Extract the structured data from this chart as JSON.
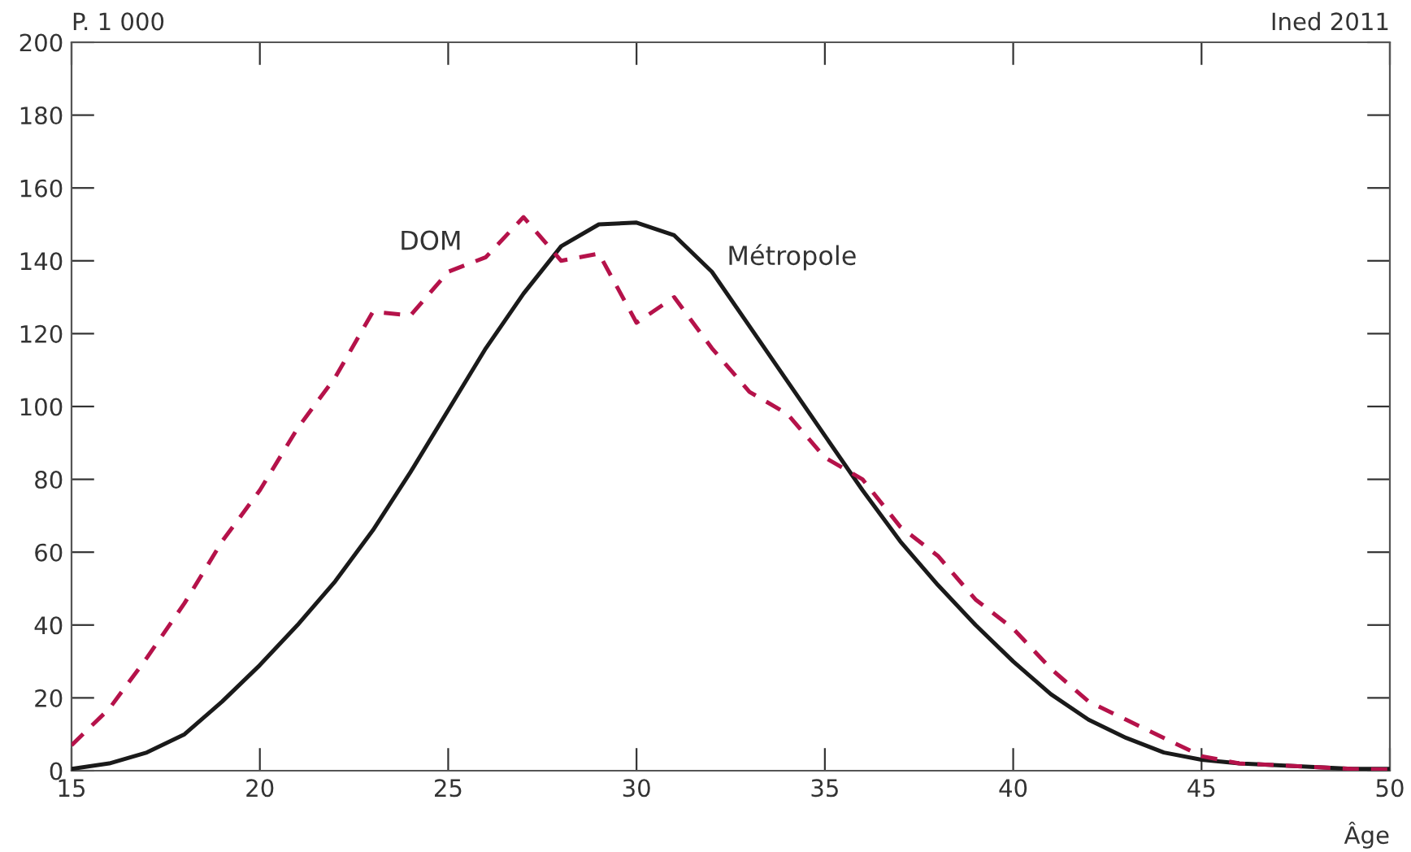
{
  "chart_data": {
    "type": "line",
    "ylabel": "P. 1 000",
    "xlabel": "Âge",
    "annotations": [
      "Ined 2011"
    ],
    "x": [
      15,
      16,
      17,
      18,
      19,
      20,
      21,
      22,
      23,
      24,
      25,
      26,
      27,
      28,
      29,
      30,
      31,
      32,
      33,
      34,
      35,
      36,
      37,
      38,
      39,
      40,
      41,
      42,
      43,
      44,
      45,
      46,
      47,
      48,
      49,
      50
    ],
    "series": [
      {
        "name": "DOM",
        "color": "#b5124a",
        "line_style": "dashed",
        "values": [
          7,
          17,
          31,
          46,
          63,
          77,
          94,
          108,
          126,
          125,
          137,
          141,
          152,
          140,
          142,
          123,
          130,
          116,
          104,
          98,
          86,
          80,
          67,
          59,
          47,
          39,
          28,
          19,
          14,
          9,
          4,
          2,
          1.5,
          1,
          0.5,
          0.3
        ]
      },
      {
        "name": "Métropole",
        "color": "#1a1a1a",
        "line_style": "solid",
        "values": [
          0.5,
          2,
          5,
          10,
          19,
          29,
          40,
          52,
          66,
          82,
          99,
          116,
          131,
          144,
          150,
          150.5,
          147,
          137,
          122,
          107,
          92,
          77,
          63,
          51,
          40,
          30,
          21,
          14,
          9,
          5,
          3,
          2,
          1.5,
          1,
          0.5,
          0.5
        ]
      }
    ],
    "xlim": [
      15,
      50
    ],
    "ylim": [
      0,
      200
    ],
    "xticks": [
      15,
      20,
      25,
      30,
      35,
      40,
      45,
      50
    ],
    "yticks": [
      0,
      20,
      40,
      60,
      80,
      100,
      120,
      140,
      160,
      180,
      200
    ],
    "grid": false,
    "legend": false
  }
}
